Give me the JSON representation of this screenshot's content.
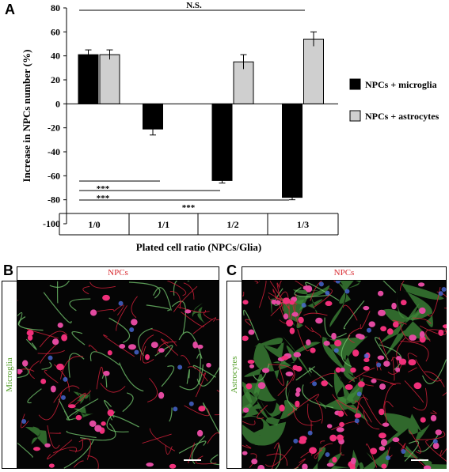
{
  "panels": {
    "a": {
      "letter": "A"
    },
    "b": {
      "letter": "B",
      "header": "NPCs",
      "side": "Microglia"
    },
    "c": {
      "letter": "C",
      "header": "NPCs",
      "side": "Astrocytes"
    }
  },
  "chart_data": {
    "type": "bar",
    "categories": [
      "1/0",
      "1/1",
      "1/2",
      "1/3"
    ],
    "series": [
      {
        "name": "NPCs + microglia",
        "color": "#000000",
        "values": [
          41,
          -21,
          -64,
          -78
        ],
        "errors": [
          4,
          5,
          2,
          2
        ]
      },
      {
        "name": "NPCs + astrocytes",
        "color": "#cfcfcf",
        "values": [
          41,
          null,
          35,
          54
        ],
        "errors": [
          4,
          null,
          6,
          6
        ]
      }
    ],
    "ylabel": "Increase in NPCs number (%)",
    "xlabel": "Plated cell ratio (NPCs/Glia)",
    "ylim": [
      -100,
      80
    ],
    "yticks": [
      "-100",
      "-80",
      "-60",
      "-40",
      "-20",
      "0",
      "20",
      "40",
      "60",
      "80"
    ],
    "grid": false,
    "legend_position": "right",
    "annotations": {
      "top_bracket": {
        "label": "N.S.",
        "from": "1/0",
        "to": "1/3"
      },
      "significance": [
        {
          "label": "***",
          "from": "1/0",
          "to": "1/1"
        },
        {
          "label": "***",
          "from": "1/0",
          "to": "1/2"
        },
        {
          "label": "***",
          "from": "1/0",
          "to": "1/3"
        }
      ]
    }
  }
}
